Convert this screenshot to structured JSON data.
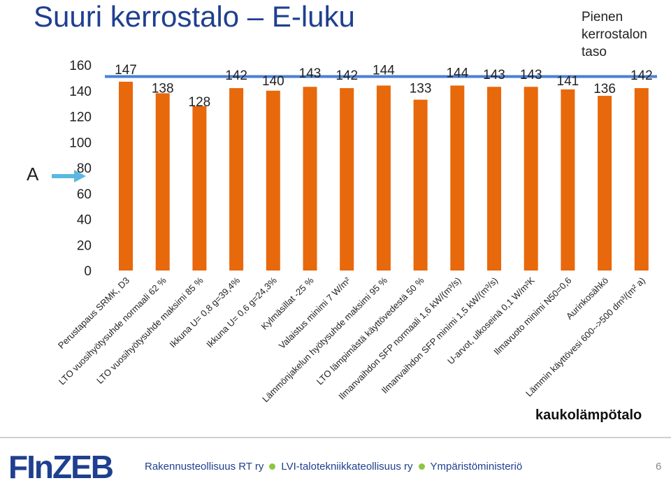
{
  "slide": {
    "title": "Suuri kerrostalo – E-luku",
    "reference_note_lines": [
      "Pienen",
      "kerrostalon",
      "taso"
    ],
    "indicator_label": "A",
    "building_type": "kaukolämpötalo"
  },
  "footer": {
    "logo_text": "FInZEB",
    "organizations": [
      "Rakennusteollisuus RT ry",
      "LVI-talotekniikkateollisuus ry",
      "Ympäristöministeriö"
    ],
    "page_number": "6"
  },
  "colors": {
    "bar": "#e8680c",
    "reference_line": "#4a7fd6",
    "title": "#1f3f8f",
    "arrow": "#5bb8e0",
    "org_dot": "#8dc63f"
  },
  "icons": {
    "arrow": "right-arrow-icon",
    "logo": "finzeb-logo-icon"
  },
  "chart_data": {
    "type": "bar",
    "title": "",
    "xlabel": "",
    "ylabel": "",
    "ylim": [
      0,
      160
    ],
    "yticks": [
      0,
      20,
      40,
      60,
      80,
      100,
      120,
      140,
      160
    ],
    "grid": false,
    "categories": [
      "Perustapaus SRMK, D3",
      "LTO vuosihyötysuhde normaali 62 %",
      "LTO vuosihyötysuhde maksimi 85 %",
      "Ikkuna U= 0,8 g=39,4%",
      "Ikkuna U= 0,6 g=24,3%",
      "Kylmäsillat -25 %",
      "Valaistus minimi 7 W/m²",
      "Lämmönjakelun hyötysuhde maksimi 95 %",
      "LTO lämpimästä käyttövedestä 50 %",
      "Ilmanvaihdon SFP normaali 1,6 kW/(m³/s)",
      "Ilmanvaihdon SFP minimi 1,5 kW/(m³/s)",
      "U-arvot, ulkoseinä 0,1 W/m²K",
      "Ilmavuoto minimi N50=0,6",
      "Aurinkosähkö",
      "Lämmin käyttövesi 600-->500 dm³/(m² a)"
    ],
    "values": [
      147,
      138,
      128,
      142,
      140,
      143,
      142,
      144,
      133,
      144,
      143,
      143,
      141,
      136,
      142
    ],
    "data_labels": [
      "147",
      "138",
      "128",
      "142",
      "140",
      "143",
      "142",
      "144",
      "133",
      "144",
      "143",
      "143",
      "141",
      "136",
      "142"
    ],
    "reference_line": {
      "value": 151
    }
  }
}
